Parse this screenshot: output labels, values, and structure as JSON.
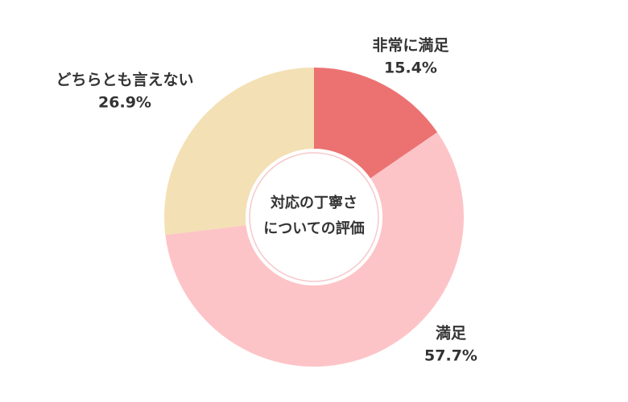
{
  "chart_data": {
    "type": "donut",
    "title": [
      "対応の丁寧さ",
      "についての評価"
    ],
    "categories": [
      "非常に満足",
      "満足",
      "どちらとも言えない"
    ],
    "values": [
      15.4,
      57.7,
      26.9
    ],
    "value_labels": [
      "15.4%",
      "57.7%",
      "26.9%"
    ],
    "colors": [
      "#ec7272",
      "#fdc4c7",
      "#f3e0b4"
    ]
  }
}
